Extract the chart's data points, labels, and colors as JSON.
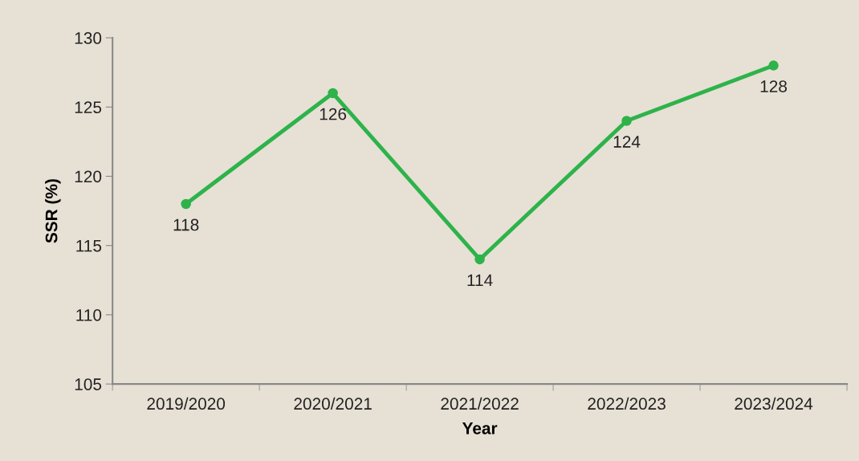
{
  "chart_data": {
    "type": "line",
    "xlabel": "Year",
    "ylabel": "SSR (%)",
    "categories": [
      "2019/2020",
      "2020/2021",
      "2021/2022",
      "2022/2023",
      "2023/2024"
    ],
    "series": [
      {
        "color": "#2db34a",
        "values": [
          118,
          126,
          114,
          124,
          128
        ]
      }
    ],
    "ylim": [
      105,
      130
    ],
    "yticks": [
      105,
      110,
      115,
      120,
      125,
      130
    ],
    "data_labels": true,
    "grid": false,
    "legend": false,
    "marker": "circle",
    "line_style": "solid"
  }
}
